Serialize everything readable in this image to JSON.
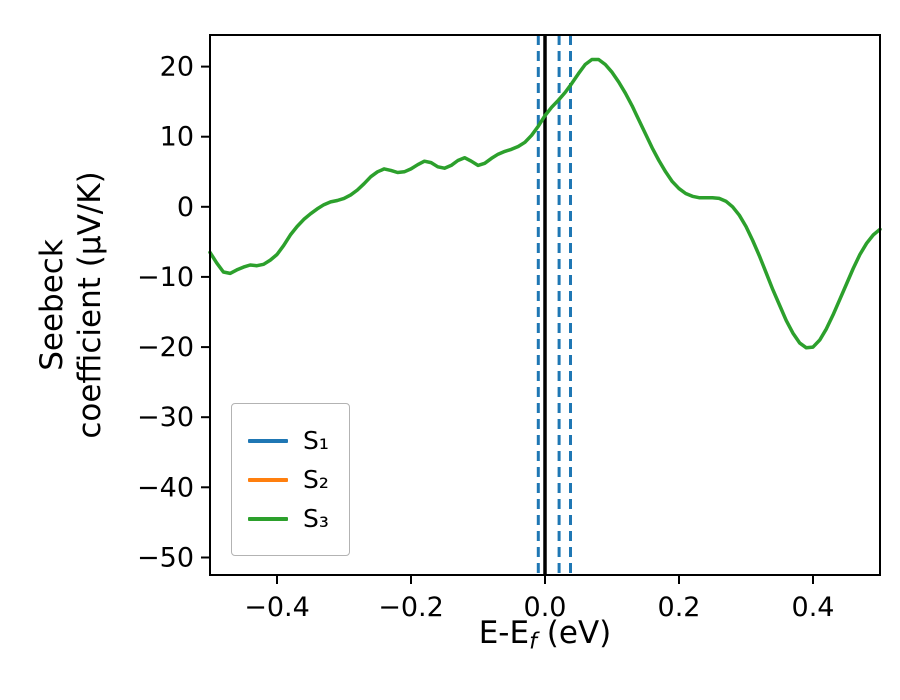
{
  "figure": {
    "background": "#ffffff",
    "ylabel_line1": "Seebeck",
    "ylabel_line2": "coefficient  (μV/K)",
    "xlabel_prefix": "E-E",
    "xlabel_sub": "f",
    "xlabel_suffix": " (eV)"
  },
  "chart_data": {
    "type": "line",
    "title": "",
    "xlabel": "E-E_f (eV)",
    "ylabel": "Seebeck coefficient (μV/K)",
    "xlim": [
      -0.5,
      0.5
    ],
    "ylim": [
      -52.5,
      24.5
    ],
    "grid": false,
    "x_ticks": {
      "values": [
        -0.4,
        -0.2,
        0.0,
        0.2,
        0.4
      ],
      "labels": [
        "−0.4",
        "−0.2",
        "0.0",
        "0.2",
        "0.4"
      ]
    },
    "y_ticks": {
      "values": [
        20,
        10,
        0,
        -10,
        -20,
        -30,
        -40,
        -50
      ],
      "labels": [
        "20",
        "10",
        "0",
        "−10",
        "−20",
        "−30",
        "−40",
        "−50"
      ]
    },
    "legend": {
      "position": "lower left",
      "entries": [
        {
          "label": "S₁",
          "color": "#1f77b4"
        },
        {
          "label": "S₂",
          "color": "#ff7f0e"
        },
        {
          "label": "S₃",
          "color": "#2ca02c"
        }
      ]
    },
    "vlines": [
      {
        "name": "vline-dashed-left",
        "x": -0.01,
        "color": "#1f77b4",
        "width": 3,
        "dashed": true
      },
      {
        "name": "vline-solid-black",
        "x": 0.0,
        "color": "#000000",
        "width": 3.5,
        "dashed": false
      },
      {
        "name": "vline-dashed-mid",
        "x": 0.021,
        "color": "#1f77b4",
        "width": 3,
        "dashed": true
      },
      {
        "name": "vline-dashed-right",
        "x": 0.038,
        "color": "#1f77b4",
        "width": 3,
        "dashed": true
      }
    ],
    "series": [
      {
        "name": "S1",
        "color": "#1f77b4",
        "style": "solid",
        "x": [],
        "y": []
      },
      {
        "name": "S2",
        "color": "#ff7f0e",
        "style": "solid",
        "x": [],
        "y": []
      },
      {
        "name": "S3",
        "color": "#2ca02c",
        "style": "solid",
        "x": [
          -0.5,
          -0.49,
          -0.48,
          -0.47,
          -0.46,
          -0.45,
          -0.44,
          -0.43,
          -0.42,
          -0.41,
          -0.4,
          -0.39,
          -0.38,
          -0.37,
          -0.36,
          -0.35,
          -0.34,
          -0.33,
          -0.32,
          -0.31,
          -0.3,
          -0.29,
          -0.28,
          -0.27,
          -0.26,
          -0.25,
          -0.24,
          -0.23,
          -0.22,
          -0.21,
          -0.2,
          -0.19,
          -0.18,
          -0.17,
          -0.16,
          -0.15,
          -0.14,
          -0.13,
          -0.12,
          -0.11,
          -0.1,
          -0.09,
          -0.08,
          -0.07,
          -0.06,
          -0.05,
          -0.04,
          -0.03,
          -0.02,
          -0.01,
          0.0,
          0.01,
          0.02,
          0.03,
          0.04,
          0.05,
          0.06,
          0.07,
          0.08,
          0.09,
          0.1,
          0.11,
          0.12,
          0.13,
          0.14,
          0.15,
          0.16,
          0.17,
          0.18,
          0.19,
          0.2,
          0.21,
          0.22,
          0.23,
          0.24,
          0.25,
          0.26,
          0.27,
          0.28,
          0.29,
          0.3,
          0.31,
          0.32,
          0.33,
          0.34,
          0.35,
          0.36,
          0.37,
          0.38,
          0.39,
          0.4,
          0.41,
          0.42,
          0.43,
          0.44,
          0.45,
          0.46,
          0.47,
          0.48,
          0.49,
          0.5
        ],
        "y": [
          -6.5,
          -8.0,
          -9.3,
          -9.5,
          -9.0,
          -8.6,
          -8.3,
          -8.4,
          -8.2,
          -7.6,
          -6.8,
          -5.5,
          -4.0,
          -2.8,
          -1.8,
          -1.0,
          -0.3,
          0.3,
          0.7,
          0.9,
          1.2,
          1.7,
          2.4,
          3.3,
          4.3,
          5.0,
          5.4,
          5.2,
          4.9,
          5.0,
          5.4,
          6.0,
          6.5,
          6.3,
          5.7,
          5.5,
          5.9,
          6.6,
          7.0,
          6.5,
          5.9,
          6.2,
          6.9,
          7.5,
          7.9,
          8.2,
          8.6,
          9.2,
          10.2,
          11.5,
          13.0,
          14.2,
          15.2,
          16.3,
          17.6,
          19.0,
          20.3,
          21.0,
          21.0,
          20.3,
          19.2,
          17.8,
          16.2,
          14.4,
          12.4,
          10.4,
          8.4,
          6.6,
          5.0,
          3.6,
          2.6,
          1.9,
          1.5,
          1.3,
          1.3,
          1.3,
          1.2,
          0.8,
          0.0,
          -1.2,
          -2.8,
          -4.8,
          -7.0,
          -9.4,
          -11.8,
          -14.0,
          -16.2,
          -18.0,
          -19.4,
          -20.1,
          -20.0,
          -19.0,
          -17.4,
          -15.4,
          -13.2,
          -11.0,
          -8.8,
          -6.8,
          -5.2,
          -4.0,
          -3.2
        ]
      }
    ]
  }
}
